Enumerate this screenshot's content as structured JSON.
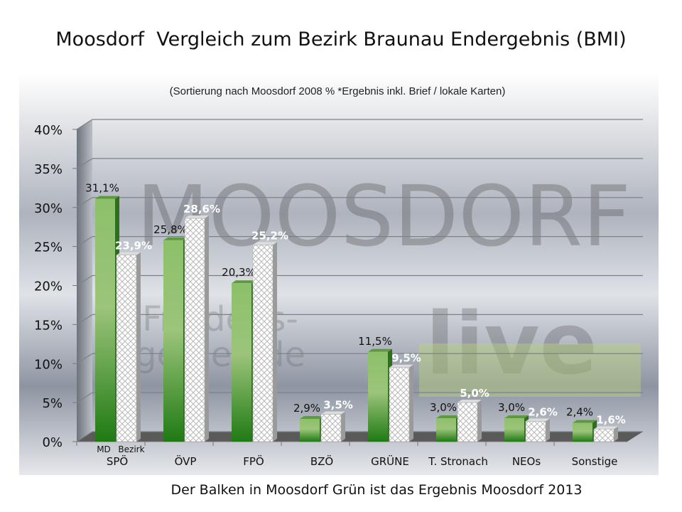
{
  "title": "Moosdorf  Vergleich zum Bezirk Braunau Endergebnis (BMI)",
  "footer": "Der Balken in Moosdorf Grün ist das Ergebnis Moosdorf 2013",
  "watermark": {
    "line1": "MOOSDORF",
    "line2": "live",
    "line3": "Friedens-",
    "line4": "gemeinde"
  },
  "colors": {
    "moosdorf": "#3f9a2a",
    "bezirk": "#ffffff",
    "wall": "#c8ccd4",
    "floor": "#555555"
  },
  "chart_data": {
    "type": "bar",
    "subtitle": "(Sortierung nach Moosdorf 2008 % *Ergebnis inkl. Brief / lokale Karten)",
    "categories": [
      "SPÖ",
      "ÖVP",
      "FPÖ",
      "BZÖ",
      "GRÜNE",
      "T. Stronach",
      "NEOs",
      "Sonstige"
    ],
    "series_labels": [
      "MD",
      "Bezirk"
    ],
    "series": [
      {
        "values": [
          31.1,
          25.8,
          20.3,
          2.9,
          11.5,
          3.0,
          3.0,
          2.4
        ],
        "labels": [
          "31,1%",
          "25,8%",
          "20,3%",
          "2,9%",
          "11,5%",
          "3,0%",
          "3,0%",
          "2,4%"
        ]
      },
      {
        "values": [
          23.9,
          28.6,
          25.2,
          3.5,
          9.5,
          5.0,
          2.6,
          1.6
        ],
        "labels": [
          "23,9%",
          "28,6%",
          "25,2%",
          "3,5%",
          "9,5%",
          "5,0%",
          "2,6%",
          "1,6%"
        ]
      }
    ],
    "yticks": [
      "0%",
      "5%",
      "10%",
      "15%",
      "20%",
      "25%",
      "30%",
      "35%",
      "40%"
    ],
    "ylim": [
      0,
      40
    ],
    "grid": true,
    "style": "3d-column"
  }
}
